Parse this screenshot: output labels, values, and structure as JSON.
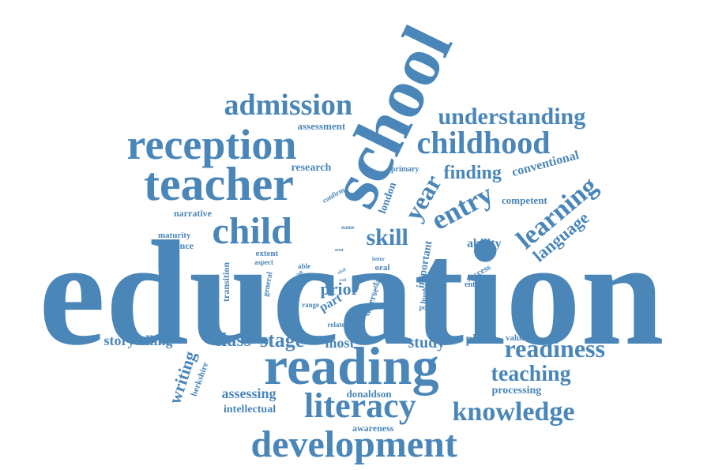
{
  "color": "#4a86b8",
  "words": [
    {
      "text": "education"
    },
    {
      "text": "school"
    },
    {
      "text": "reading"
    },
    {
      "text": "reception"
    },
    {
      "text": "teacher"
    },
    {
      "text": "admission"
    },
    {
      "text": "development"
    },
    {
      "text": "literacy"
    },
    {
      "text": "knowledge"
    },
    {
      "text": "childhood"
    },
    {
      "text": "understanding"
    },
    {
      "text": "child"
    },
    {
      "text": "readiness"
    },
    {
      "text": "teaching"
    },
    {
      "text": "learning"
    },
    {
      "text": "language"
    },
    {
      "text": "entry"
    },
    {
      "text": "year"
    },
    {
      "text": "skill"
    },
    {
      "text": "prior"
    },
    {
      "text": "finding"
    },
    {
      "text": "conventional"
    },
    {
      "text": "stage"
    },
    {
      "text": "class"
    },
    {
      "text": "storytelling"
    },
    {
      "text": "study"
    },
    {
      "text": "most"
    },
    {
      "text": "writing"
    },
    {
      "text": "assessing"
    },
    {
      "text": "intellectual"
    },
    {
      "text": "donaldson"
    },
    {
      "text": "awareness"
    },
    {
      "text": "processing"
    },
    {
      "text": "phase"
    },
    {
      "text": "valuable"
    },
    {
      "text": "competent"
    },
    {
      "text": "ability"
    },
    {
      "text": "research"
    },
    {
      "text": "assessment"
    },
    {
      "text": "narrative"
    },
    {
      "text": "maturity"
    },
    {
      "text": "evidence"
    },
    {
      "text": "extent"
    },
    {
      "text": "aspect"
    },
    {
      "text": "transition"
    },
    {
      "text": "general"
    },
    {
      "text": "main"
    },
    {
      "text": "able"
    },
    {
      "text": "range"
    },
    {
      "text": "part"
    },
    {
      "text": "related"
    },
    {
      "text": "diverse"
    },
    {
      "text": "data"
    },
    {
      "text": "oral"
    },
    {
      "text": "letter"
    },
    {
      "text": "important"
    },
    {
      "text": "hughes"
    },
    {
      "text": "postal"
    },
    {
      "text": "success"
    },
    {
      "text": "entrant"
    },
    {
      "text": "london"
    },
    {
      "text": "confirm"
    },
    {
      "text": "primary"
    },
    {
      "text": "berkshire"
    },
    {
      "text": "name"
    },
    {
      "text": "seen"
    },
    {
      "text": "vital"
    },
    {
      "text": "well"
    }
  ]
}
